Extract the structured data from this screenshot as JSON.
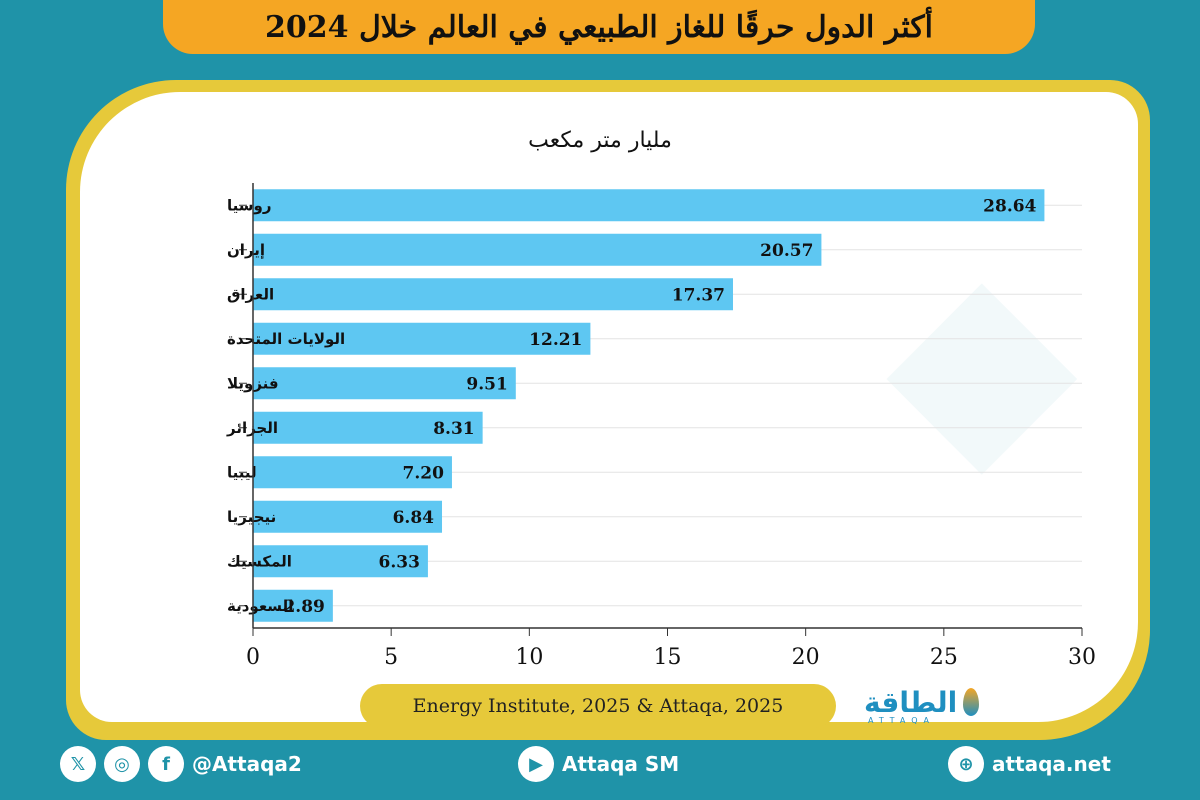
{
  "header": {
    "title": "أكثر الدول حرقًا للغاز الطبيعي في العالم خلال 2024"
  },
  "chart_data": {
    "type": "bar",
    "orientation": "horizontal",
    "unit_label": "مليار متر مكعب",
    "categories": [
      "روسيا",
      "إيران",
      "العراق",
      "الولايات المتحدة",
      "فنزويلا",
      "الجزائر",
      "ليبيا",
      "نيجيريا",
      "المكسيك",
      "السعودية"
    ],
    "values": [
      28.64,
      20.57,
      17.37,
      12.21,
      9.51,
      8.31,
      7.2,
      6.84,
      6.33,
      2.89
    ],
    "value_labels": [
      "28.64",
      "20.57",
      "17.37",
      "12.21",
      "9.51",
      "8.31",
      "7.20",
      "6.84",
      "6.33",
      "2.89"
    ],
    "xlim": [
      0,
      30
    ],
    "xticks": [
      "0",
      "5",
      "10",
      "15",
      "20",
      "25",
      "30"
    ],
    "grid": "horizontal",
    "bar_color": "#5ec7f2"
  },
  "source": {
    "text": "Energy Institute, 2025 & Attaqa, 2025"
  },
  "logo": {
    "text": "الطاقة",
    "sub": "ATTAQA"
  },
  "footer": {
    "social_handle": "@Attaqa2",
    "youtube": "Attaqa SM",
    "website": "attaqa.net",
    "icons": [
      "x-icon",
      "instagram-icon",
      "facebook-icon",
      "youtube-icon",
      "globe-icon"
    ]
  },
  "colors": {
    "background": "#1f93a8",
    "accent": "#f5a623",
    "frame": "#e6c93a"
  }
}
